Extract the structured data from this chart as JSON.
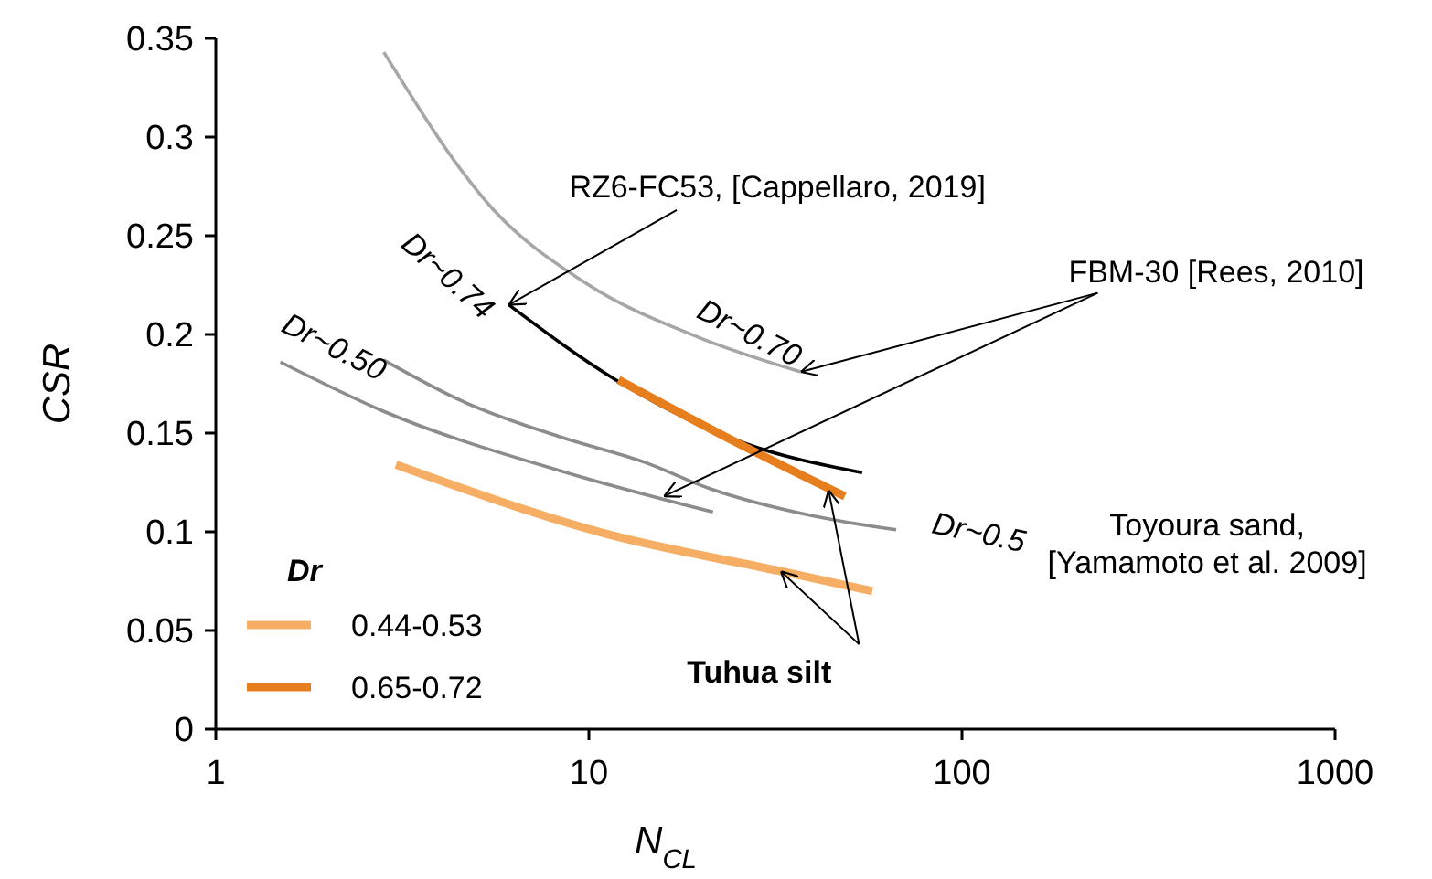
{
  "chart_data": {
    "type": "line",
    "xlabel": "N$_{CL}$",
    "ylabel": "CSR",
    "legend_title": "Dr",
    "log": "x",
    "grid": false,
    "legend": "bottom left",
    "xlim": [
      1,
      1000
    ],
    "xticks": [
      1,
      10,
      100,
      1000
    ],
    "ylim": [
      0,
      0.35
    ],
    "yticks": [
      0,
      0.05,
      0.1,
      0.15,
      0.2,
      0.25,
      0.3,
      0.35
    ],
    "series": [
      {
        "color": "#a6a6a6",
        "x": [
          2.82,
          5.56,
          9.8,
          20,
          37
        ],
        "values": [
          0.343,
          0.263,
          0.226,
          0.198,
          0.181
        ]
      },
      {
        "color": "#8c8c8c",
        "x": [
          1.49,
          2.82,
          8.7,
          21.5
        ],
        "values": [
          0.186,
          0.161,
          0.13,
          0.11
        ]
      },
      {
        "color": "#8c8c8c",
        "x": [
          2.82,
          4.6,
          8.4,
          14.2,
          21,
          40,
          66.6
        ],
        "values": [
          0.187,
          0.166,
          0.148,
          0.135,
          0.122,
          0.108,
          0.101
        ]
      },
      {
        "color": "#000000",
        "x": [
          6.1,
          11.8,
          26,
          54
        ],
        "values": [
          0.215,
          0.177,
          0.145,
          0.13
        ]
      },
      {
        "name": "0.44-0.53",
        "color": "#f5ae64",
        "x": [
          3.04,
          11.1,
          32.7,
          57.5
        ],
        "values": [
          0.134,
          0.099,
          0.08,
          0.07
        ]
      },
      {
        "name": "0.65-0.72",
        "color": "#e67e1e",
        "x": [
          12,
          25,
          48.5
        ],
        "values": [
          0.177,
          0.145,
          0.118
        ]
      }
    ],
    "annotations": [
      {
        "text": "RZ6-FC53, [Cappellaro, 2019]",
        "x": 6.1,
        "y": 0.215
      },
      {
        "text": "FBM-30 [Rees, 2010]",
        "x": 37,
        "y": 0.181
      },
      "Toyoura sand,\n[Yamamoto et al. 2009]",
      {
        "text": "Tuhua silt",
        "x": 32.7,
        "y": 0.08
      },
      "Dr~0.74",
      "Dr~0.70",
      "Dr~0.50",
      "Dr~0.5"
    ]
  }
}
